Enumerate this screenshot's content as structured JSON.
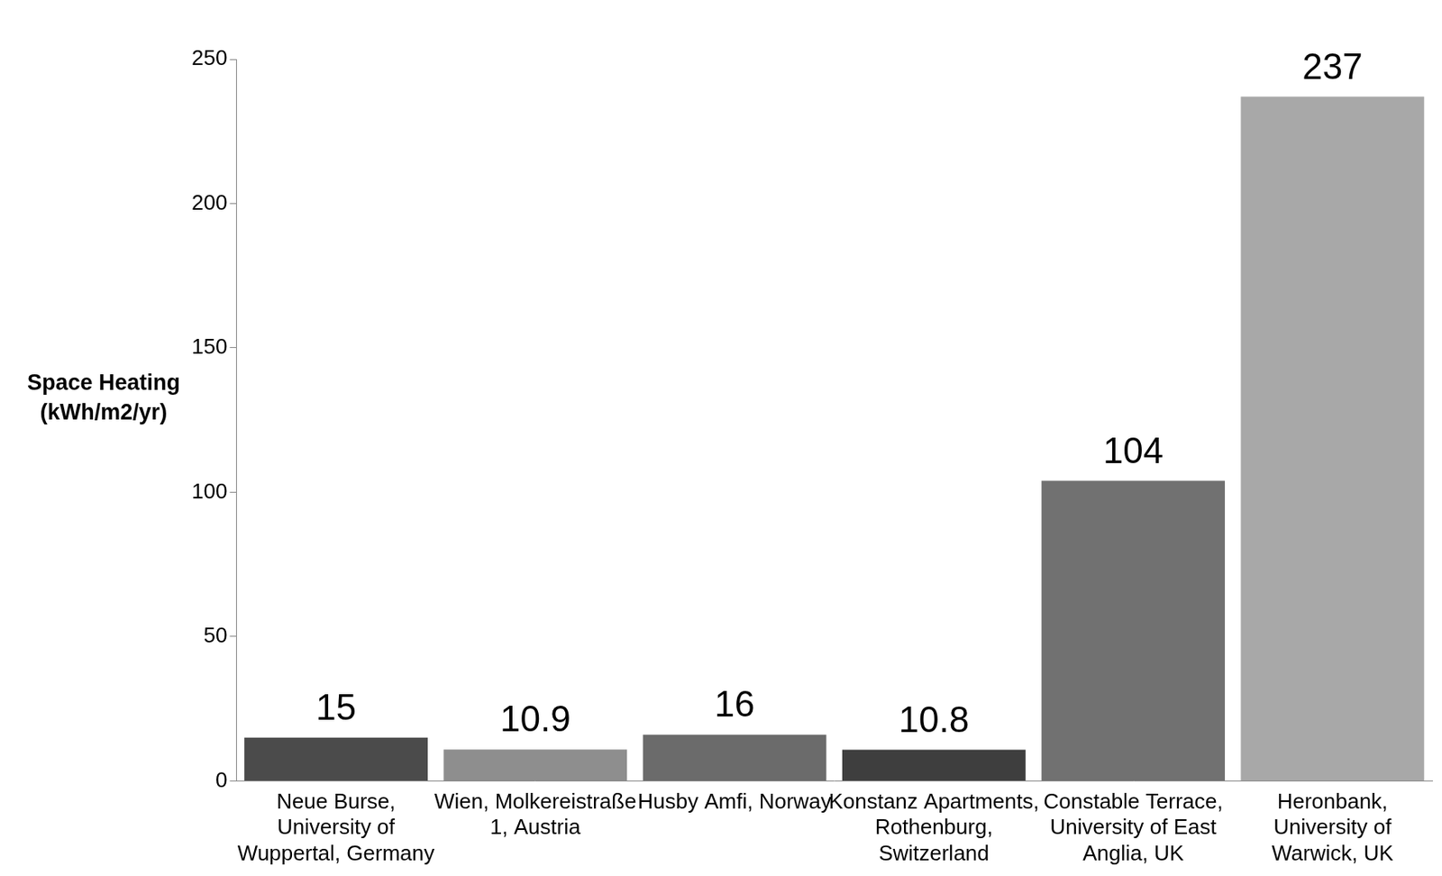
{
  "chart_data": {
    "type": "bar",
    "y_label": "Space Heating (kWh/m2/yr)",
    "categories": [
      "Neue Burse, University of Wuppertal, Germany",
      "Wien, Molkereistraße 1, Austria",
      "Husby Amfi, Norway",
      "Konstanz Apartments, Rothenburg, Switzerland",
      "Constable Terrace, University of East Anglia, UK",
      "Heronbank, University of Warwick, UK"
    ],
    "values": [
      15,
      10.9,
      16,
      10.8,
      104,
      237
    ],
    "colors": [
      "#4b4b4b",
      "#8e8e8e",
      "#6b6b6b",
      "#3e3e3e",
      "#717171",
      "#a8a8a8"
    ],
    "ylim": [
      0,
      250
    ],
    "yticks": [
      0,
      50,
      100,
      150,
      200,
      250
    ],
    "grid": false,
    "data_labels": true
  }
}
